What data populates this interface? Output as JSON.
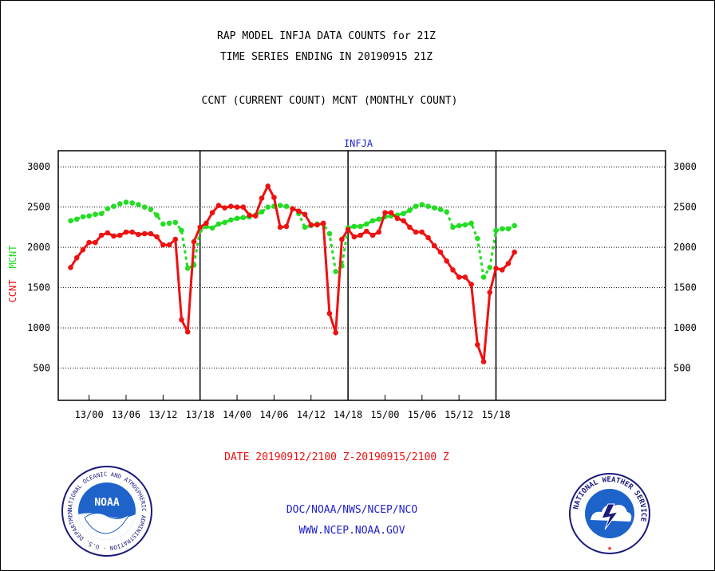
{
  "header": {
    "title_line1": "RAP MODEL INFJA DATA COUNTS for 21Z",
    "title_line2": "TIME SERIES ENDING IN 20190915 21Z",
    "subtitle": "CCNT (CURRENT COUNT) MCNT (MONTHLY COUNT)"
  },
  "footer": {
    "date_range": "DATE 20190912/2100 Z-20190915/2100 Z",
    "org": "DOC/NOAA/NWS/NCEP/NCO",
    "url": "WWW.NCEP.NOAA.GOV",
    "noaa_logo_text": "NOAA",
    "noaa_seal_text": "NATIONAL OCEANIC AND ATMOSPHERIC ADMINISTRATION · U.S. DEPARTMENT OF COMMERCE",
    "nws_seal_text": "NATIONAL WEATHER SERVICE"
  },
  "colors": {
    "ccnt": "#ee1111",
    "mcnt": "#22dd22",
    "title_blue": "#2222cc",
    "date_red": "#ee1111"
  },
  "chart_data": {
    "type": "line",
    "title": "INFJA",
    "ylabel_parts": [
      "CCNT",
      "MCNT"
    ],
    "ylim": [
      100,
      3200
    ],
    "yticks": [
      500,
      1000,
      1500,
      2000,
      2500,
      3000
    ],
    "x_range_hours": [
      -2,
      96.5
    ],
    "xticks": [
      {
        "hour": 3,
        "label": "13/00"
      },
      {
        "hour": 9,
        "label": "13/06"
      },
      {
        "hour": 15,
        "label": "13/12"
      },
      {
        "hour": 21,
        "label": "13/18"
      },
      {
        "hour": 27,
        "label": "14/00"
      },
      {
        "hour": 33,
        "label": "14/06"
      },
      {
        "hour": 39,
        "label": "14/12"
      },
      {
        "hour": 45,
        "label": "14/18"
      },
      {
        "hour": 51,
        "label": "15/00"
      },
      {
        "hour": 57,
        "label": "15/06"
      },
      {
        "hour": 63,
        "label": "15/12"
      },
      {
        "hour": 69,
        "label": "15/18"
      }
    ],
    "day_dividers_hours": [
      21,
      45,
      69
    ],
    "grid": "horizontal-dotted",
    "series": [
      {
        "name": "CCNT",
        "style": "solid",
        "values": [
          1750,
          1870,
          1970,
          2060,
          2060,
          2150,
          2180,
          2140,
          2150,
          2190,
          2190,
          2160,
          2170,
          2170,
          2130,
          2030,
          2030,
          2100,
          1100,
          950,
          2070,
          2250,
          2300,
          2430,
          2520,
          2490,
          2510,
          2500,
          2500,
          2400,
          2390,
          2610,
          2760,
          2620,
          2250,
          2260,
          2480,
          2450,
          2410,
          2280,
          2280,
          2300,
          1180,
          940,
          2100,
          2220,
          2130,
          2150,
          2200,
          2150,
          2190,
          2430,
          2430,
          2360,
          2330,
          2250,
          2190,
          2190,
          2120,
          2020,
          1940,
          1830,
          1720,
          1630,
          1630,
          1540,
          790,
          580,
          1440,
          1740,
          1720,
          1800,
          1940
        ]
      },
      {
        "name": "MCNT",
        "style": "dotted",
        "values": [
          2330,
          2350,
          2380,
          2390,
          2410,
          2420,
          2480,
          2510,
          2540,
          2560,
          2550,
          2530,
          2500,
          2470,
          2400,
          2290,
          2300,
          2310,
          2210,
          1740,
          1780,
          2210,
          2260,
          2240,
          2290,
          2310,
          2340,
          2360,
          2370,
          2380,
          2400,
          2440,
          2500,
          2510,
          2520,
          2510,
          2480,
          2420,
          2250,
          2270,
          2290,
          2290,
          2170,
          1700,
          1770,
          2240,
          2260,
          2260,
          2290,
          2330,
          2350,
          2380,
          2390,
          2400,
          2420,
          2460,
          2510,
          2530,
          2510,
          2490,
          2470,
          2440,
          2250,
          2270,
          2280,
          2300,
          2110,
          1630,
          1750,
          2210,
          2230,
          2230,
          2270
        ]
      }
    ]
  }
}
